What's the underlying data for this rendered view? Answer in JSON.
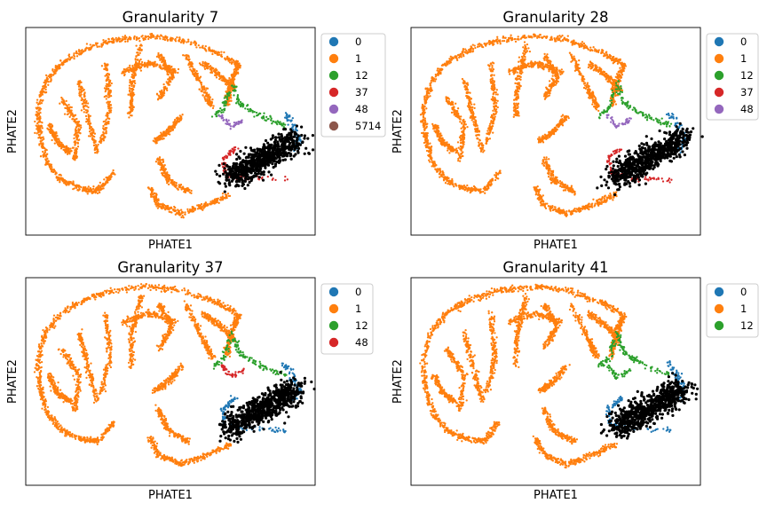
{
  "palette": [
    "#1f77b4",
    "#ff7f0e",
    "#2ca02c",
    "#d62728",
    "#9467bd",
    "#8c564b"
  ],
  "highlight_color": "#000000",
  "chart_data": [
    {
      "type": "scatter",
      "title": "Granularity 7",
      "xlabel": "PHATE1",
      "ylabel": "PHATE2",
      "grid": false,
      "legend_position": "outside-right",
      "legend": [
        "0",
        "1",
        "12",
        "37",
        "48",
        "5714"
      ],
      "series_colors": [
        "#1f77b4",
        "#ff7f0e",
        "#2ca02c",
        "#d62728",
        "#9467bd",
        "#8c564b"
      ]
    },
    {
      "type": "scatter",
      "title": "Granularity 28",
      "xlabel": "PHATE1",
      "ylabel": "PHATE2",
      "grid": false,
      "legend_position": "outside-right",
      "legend": [
        "0",
        "1",
        "12",
        "37",
        "48"
      ],
      "series_colors": [
        "#1f77b4",
        "#ff7f0e",
        "#2ca02c",
        "#d62728",
        "#9467bd"
      ]
    },
    {
      "type": "scatter",
      "title": "Granularity 37",
      "xlabel": "PHATE1",
      "ylabel": "PHATE2",
      "grid": false,
      "legend_position": "outside-right",
      "legend": [
        "0",
        "1",
        "12",
        "48"
      ],
      "series_colors": [
        "#1f77b4",
        "#ff7f0e",
        "#2ca02c",
        "#d62728"
      ]
    },
    {
      "type": "scatter",
      "title": "Granularity 41",
      "xlabel": "PHATE1",
      "ylabel": "PHATE2",
      "grid": false,
      "legend_position": "outside-right",
      "legend": [
        "0",
        "1",
        "12"
      ],
      "series_colors": [
        "#1f77b4",
        "#ff7f0e",
        "#2ca02c"
      ]
    }
  ]
}
